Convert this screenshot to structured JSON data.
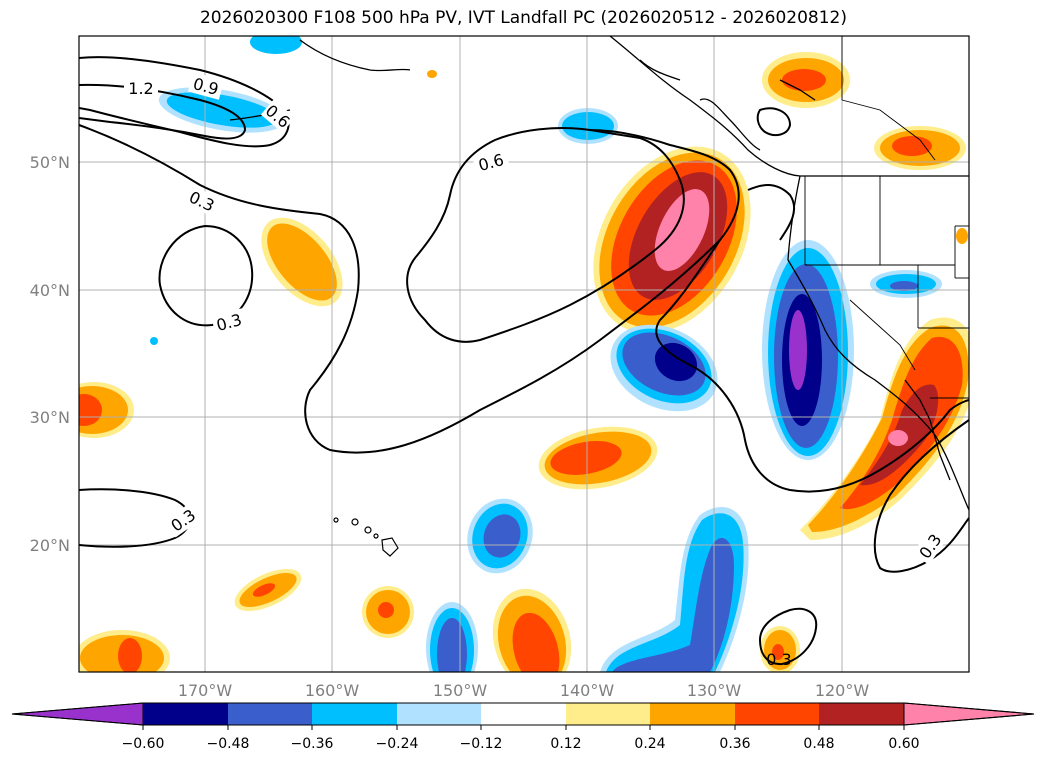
{
  "title": "2026020300 F108 500 hPa PV, IVT Landfall PC (2026020512 - 2026020812)",
  "lat_labels": [
    "50°N",
    "40°N",
    "30°N",
    "20°N"
  ],
  "lon_labels": [
    "170°W",
    "160°W",
    "150°W",
    "140°W",
    "130°W",
    "120°W"
  ],
  "contour_labels": [
    "1.2",
    "0.9",
    "0.6",
    "0.3",
    "0.3",
    "0.6",
    "0.3",
    "0.3",
    "0.3"
  ],
  "colorbar": {
    "ticks": [
      "−0.60",
      "−0.48",
      "−0.36",
      "−0.24",
      "−0.12",
      "0.12",
      "0.24",
      "0.36",
      "0.48",
      "0.60"
    ],
    "colors": [
      "#9932cc",
      "#00008b",
      "#3a5fcd",
      "#00bfff",
      "#b0e2ff",
      "#ffffff",
      "#ffec8b",
      "#ffa500",
      "#ff4500",
      "#b22222",
      "#ff82ab"
    ]
  },
  "colors": {
    "c_neg060": "#9932cc",
    "c_neg048": "#00008b",
    "c_neg036": "#3a5fcd",
    "c_neg024": "#00bfff",
    "c_neg012": "#b0e2ff",
    "c_pos012": "#ffec8b",
    "c_pos024": "#ffa500",
    "c_pos036": "#ff4500",
    "c_pos048": "#b22222",
    "c_pos060": "#ff82ab"
  }
}
